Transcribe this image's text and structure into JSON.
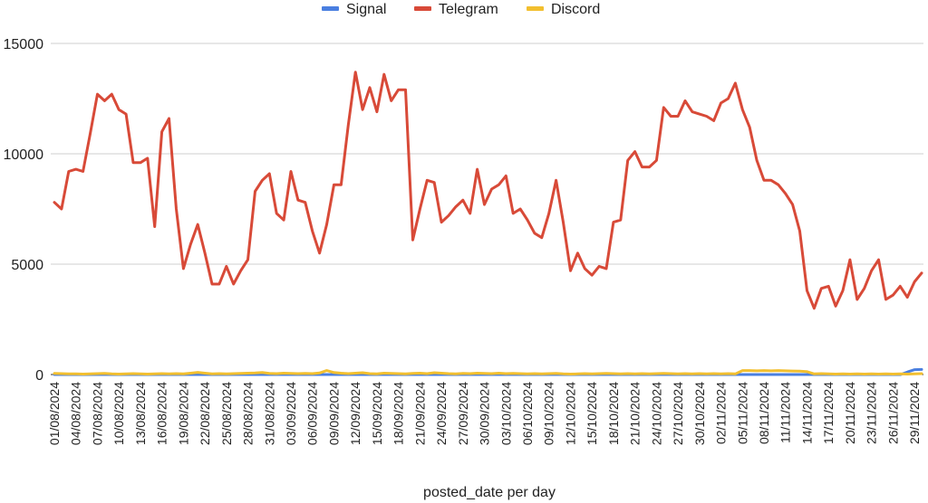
{
  "chart_data": {
    "type": "line",
    "xlabel": "posted_date per day",
    "ylabel": "",
    "ylim": [
      0,
      15000
    ],
    "yticks": [
      0,
      5000,
      10000,
      15000
    ],
    "grid": true,
    "legend_position": "top-center",
    "x_tick_labels": [
      "01/08/2024",
      "04/08/2024",
      "07/08/2024",
      "10/08/2024",
      "13/08/2024",
      "16/08/2024",
      "19/08/2024",
      "22/08/2024",
      "25/08/2024",
      "28/08/2024",
      "31/08/2024",
      "03/09/2024",
      "06/09/2024",
      "09/09/2024",
      "12/09/2024",
      "15/09/2024",
      "18/09/2024",
      "21/09/2024",
      "24/09/2024",
      "27/09/2024",
      "30/09/2024",
      "03/10/2024",
      "06/10/2024",
      "09/10/2024",
      "12/10/2024",
      "15/10/2024",
      "18/10/2024",
      "21/10/2024",
      "24/10/2024",
      "27/10/2024",
      "30/10/2024",
      "02/11/2024",
      "05/11/2024",
      "08/11/2024",
      "11/11/2024",
      "14/11/2024",
      "17/11/2024",
      "20/11/2024",
      "23/11/2024",
      "26/11/2024",
      "29/11/2024"
    ],
    "series": [
      {
        "name": "Signal",
        "color": "#4a7fe0",
        "values": [
          0,
          0,
          0,
          0,
          0,
          0,
          0,
          0,
          0,
          0,
          0,
          0,
          0,
          0,
          0,
          0,
          0,
          0,
          0,
          0,
          0,
          0,
          0,
          0,
          0,
          0,
          0,
          0,
          0,
          0,
          0,
          0,
          0,
          0,
          0,
          0,
          0,
          0,
          0,
          0,
          0,
          0,
          0,
          0,
          0,
          0,
          0,
          0,
          0,
          0,
          0,
          0,
          0,
          0,
          0,
          0,
          0,
          0,
          0,
          0,
          0,
          0,
          0,
          0,
          0,
          0,
          0,
          0,
          0,
          0,
          0,
          0,
          0,
          0,
          0,
          0,
          0,
          0,
          0,
          0,
          0,
          0,
          0,
          0,
          0,
          0,
          0,
          0,
          0,
          0,
          0,
          0,
          0,
          0,
          0,
          0,
          0,
          0,
          0,
          0,
          0,
          0,
          0,
          0,
          0,
          0,
          0,
          0,
          0,
          0,
          0,
          0,
          0,
          0,
          0,
          0,
          0,
          0,
          0,
          0,
          0,
          0,
          120,
          220,
          230
        ]
      },
      {
        "name": "Telegram",
        "color": "#d84a38",
        "values": [
          7800,
          7500,
          9200,
          9300,
          9200,
          10900,
          12700,
          12400,
          12700,
          12000,
          11800,
          9600,
          9600,
          9800,
          6700,
          11000,
          11600,
          7500,
          4800,
          5900,
          6800,
          5500,
          4100,
          4100,
          4900,
          4100,
          4700,
          5200,
          8300,
          8800,
          9100,
          7300,
          7000,
          9200,
          7900,
          7800,
          6500,
          5500,
          6800,
          8600,
          8600,
          11300,
          13700,
          12000,
          13000,
          11900,
          13600,
          12400,
          12900,
          12900,
          6100,
          7500,
          8800,
          8700,
          6900,
          7200,
          7600,
          7900,
          7300,
          9300,
          7700,
          8400,
          8600,
          9000,
          7300,
          7500,
          7000,
          6400,
          6200,
          7300,
          8800,
          6900,
          4700,
          5500,
          4800,
          4500,
          4900,
          4800,
          6900,
          7000,
          9700,
          10100,
          9400,
          9400,
          9700,
          12100,
          11700,
          11700,
          12400,
          11900,
          11800,
          11700,
          11500,
          12300,
          12500,
          13200,
          12000,
          11200,
          9700,
          8800,
          8800,
          8600,
          8200,
          7700,
          6500,
          3800,
          3000,
          3900,
          4000,
          3100,
          3800,
          5200,
          3400,
          3900,
          4700,
          5200,
          3400,
          3600,
          4000,
          3500,
          4200,
          4600
        ]
      },
      {
        "name": "Discord",
        "color": "#f2bf2f",
        "values": [
          50,
          40,
          30,
          30,
          20,
          30,
          40,
          50,
          30,
          20,
          30,
          40,
          30,
          20,
          30,
          40,
          30,
          40,
          30,
          60,
          100,
          60,
          30,
          40,
          30,
          40,
          50,
          60,
          70,
          90,
          50,
          40,
          60,
          50,
          40,
          50,
          40,
          70,
          180,
          90,
          60,
          40,
          60,
          80,
          40,
          30,
          60,
          50,
          40,
          30,
          50,
          60,
          40,
          80,
          60,
          40,
          30,
          50,
          40,
          60,
          50,
          40,
          60,
          40,
          50,
          40,
          30,
          40,
          30,
          40,
          50,
          30,
          20,
          30,
          40,
          30,
          40,
          50,
          40,
          30,
          40,
          30,
          40,
          30,
          40,
          50,
          40,
          30,
          40,
          30,
          40,
          30,
          40,
          30,
          40,
          30,
          180,
          180,
          170,
          180,
          170,
          180,
          170,
          160,
          150,
          130,
          30,
          40,
          30,
          20,
          30,
          20,
          30,
          20,
          30,
          20,
          30,
          20,
          30,
          20,
          30,
          40
        ]
      }
    ]
  }
}
